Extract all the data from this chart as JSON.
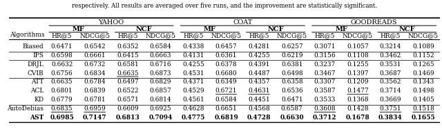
{
  "title_text": "respectively. All results are averaged over five runs, and the improvement are statistically significant.",
  "datasets": [
    "YAHOO",
    "COAT",
    "GOODREADS"
  ],
  "sub_headers": [
    "MF",
    "NCF",
    "MF",
    "NCF",
    "MF",
    "NCF"
  ],
  "col_headers": [
    "HR@5",
    "NDCG@5",
    "HR@5",
    "NDCG@5",
    "HR@5",
    "NDCG@5",
    "HR@5",
    "NDCG@5",
    "HR@5",
    "NDCG@5",
    "HR@5",
    "NDCG@5"
  ],
  "algorithms": [
    "Biased",
    "IPS",
    "DRJL",
    "CVIB",
    "ATT",
    "ACL",
    "KD",
    "AutoDebias",
    "AST"
  ],
  "data": {
    "Biased": [
      "0.6471",
      "0.6542",
      "0.6352",
      "0.6584",
      "0.4338",
      "0.6457",
      "0.4281",
      "0.6257",
      "0.3071",
      "0.1057",
      "0.3214",
      "0.1089"
    ],
    "IPS": [
      "0.6598",
      "0.6661",
      "0.6415",
      "0.6663",
      "0.4131",
      "0.6361",
      "0.4255",
      "0.6219",
      "0.3156",
      "0.1108",
      "0.3462",
      "0.1152"
    ],
    "DRJL": [
      "0.6632",
      "0.6732",
      "0.6581",
      "0.6716",
      "0.4255",
      "0.6378",
      "0.4391",
      "0.6381",
      "0.3237",
      "0.1255",
      "0.3531",
      "0.1265"
    ],
    "CVIB": [
      "0.6756",
      "0.6834",
      "0.6635",
      "0.6873",
      "0.4531",
      "0.6680",
      "0.4487",
      "0.6498",
      "0.3467",
      "0.1397",
      "0.3687",
      "0.1469"
    ],
    "ATT": [
      "0.6635",
      "0.6784",
      "0.6497",
      "0.6829",
      "0.4371",
      "0.6349",
      "0.4357",
      "0.6358",
      "0.3307",
      "0.1209",
      "0.3562",
      "0.1343"
    ],
    "ACL": [
      "0.6801",
      "0.6839",
      "0.6522",
      "0.6857",
      "0.4529",
      "0.6721",
      "0.4631",
      "0.6536",
      "0.3587",
      "0.1477",
      "0.3714",
      "0.1498"
    ],
    "KD": [
      "0.6779",
      "0.6781",
      "0.6571",
      "0.6814",
      "0.4561",
      "0.6584",
      "0.4451",
      "0.6471",
      "0.3533",
      "0.1368",
      "0.3669",
      "0.1405"
    ],
    "AutoDebias": [
      "0.6835",
      "0.6959",
      "0.6609",
      "0.6925",
      "0.4628",
      "0.6651",
      "0.4568",
      "0.6587",
      "0.3608",
      "0.1428",
      "0.3751",
      "0.1518"
    ],
    "AST": [
      "0.6985",
      "0.7147",
      "0.6813",
      "0.7094",
      "0.4775",
      "0.6819",
      "0.4728",
      "0.6630",
      "0.3712",
      "0.1678",
      "0.3834",
      "0.1655"
    ]
  },
  "underline": {
    "Biased": [
      0,
      0,
      0,
      0,
      0,
      0,
      0,
      0,
      0,
      0,
      0,
      0
    ],
    "IPS": [
      0,
      0,
      0,
      0,
      0,
      0,
      0,
      0,
      0,
      0,
      0,
      0
    ],
    "DRJL": [
      0,
      0,
      0,
      0,
      0,
      0,
      0,
      0,
      0,
      0,
      0,
      0
    ],
    "CVIB": [
      0,
      0,
      1,
      0,
      0,
      0,
      0,
      0,
      0,
      0,
      0,
      0
    ],
    "ATT": [
      0,
      0,
      0,
      0,
      0,
      0,
      0,
      0,
      0,
      0,
      0,
      0
    ],
    "ACL": [
      0,
      0,
      0,
      0,
      0,
      1,
      1,
      0,
      0,
      1,
      0,
      0
    ],
    "KD": [
      0,
      0,
      0,
      0,
      0,
      0,
      0,
      0,
      0,
      0,
      0,
      0
    ],
    "AutoDebias": [
      1,
      1,
      0,
      0,
      0,
      0,
      0,
      0,
      1,
      0,
      1,
      1
    ],
    "AST": [
      0,
      0,
      0,
      0,
      0,
      0,
      0,
      0,
      0,
      0,
      0,
      0
    ]
  },
  "bold_row": "AST",
  "group_separators": [
    0,
    1,
    3,
    6,
    8
  ],
  "background_color": "#ffffff",
  "font_size": 6.5,
  "header_font_size": 7.0
}
